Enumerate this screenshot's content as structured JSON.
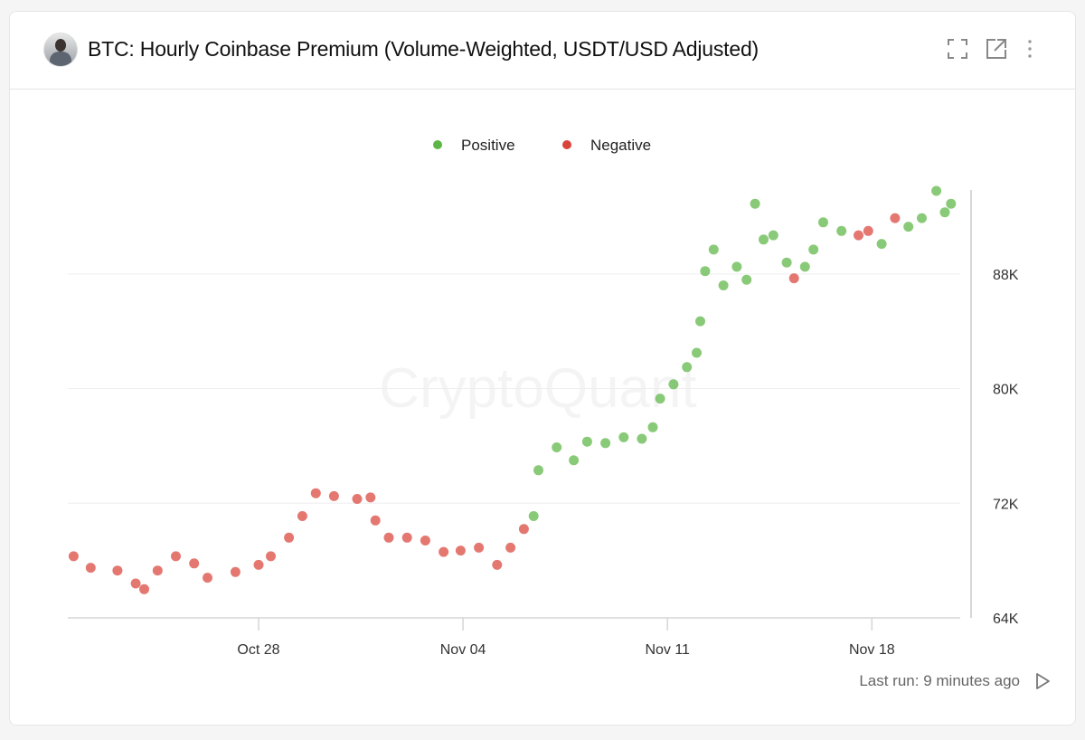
{
  "header": {
    "title": "BTC: Hourly Coinbase Premium (Volume-Weighted, USDT/USD Adjusted)",
    "icons": [
      "fullscreen-icon",
      "external-link-icon",
      "more-vertical-icon"
    ]
  },
  "footer": {
    "last_run": "Last run: 9 minutes ago",
    "icon": "play-icon"
  },
  "watermark": "CryptoQuant",
  "colors": {
    "positive": "#5cb544",
    "negative": "#d9443a"
  },
  "chart_data": {
    "type": "scatter",
    "title": "",
    "xlabel": "",
    "ylabel": "",
    "legend": {
      "placement": "top",
      "entries": [
        {
          "key": "positive",
          "label": "Positive"
        },
        {
          "key": "negative",
          "label": "Negative"
        }
      ]
    },
    "x_ticks": [
      "Oct 28",
      "Nov 04",
      "Nov 11",
      "Nov 18"
    ],
    "x_tick_dates": [
      "2024-10-28",
      "2024-11-04",
      "2024-11-11",
      "2024-11-18"
    ],
    "y_ticks": [
      "64K",
      "72K",
      "80K",
      "88K"
    ],
    "y_tick_values": [
      64000,
      72000,
      80000,
      88000
    ],
    "y_axis_position": "right",
    "grid": true,
    "ylim": [
      64000,
      94000
    ],
    "xlim": [
      "2024-10-21T12:00",
      "2024-11-21T00:00"
    ],
    "points": [
      [
        "2024-10-21T16:00",
        68300,
        "negative"
      ],
      [
        "2024-10-22T06:00",
        67500,
        "negative"
      ],
      [
        "2024-10-23T04:00",
        67300,
        "negative"
      ],
      [
        "2024-10-23T19:00",
        66400,
        "negative"
      ],
      [
        "2024-10-24T02:00",
        66000,
        "negative"
      ],
      [
        "2024-10-24T13:00",
        67300,
        "negative"
      ],
      [
        "2024-10-25T04:00",
        68300,
        "negative"
      ],
      [
        "2024-10-25T19:00",
        67800,
        "negative"
      ],
      [
        "2024-10-26T06:00",
        66800,
        "negative"
      ],
      [
        "2024-10-27T05:00",
        67200,
        "negative"
      ],
      [
        "2024-10-28T00:00",
        67700,
        "negative"
      ],
      [
        "2024-10-28T10:00",
        68300,
        "negative"
      ],
      [
        "2024-10-29T01:00",
        69600,
        "negative"
      ],
      [
        "2024-10-29T12:00",
        71100,
        "negative"
      ],
      [
        "2024-10-29T23:00",
        72700,
        "negative"
      ],
      [
        "2024-10-30T14:00",
        72500,
        "negative"
      ],
      [
        "2024-10-31T09:00",
        72300,
        "negative"
      ],
      [
        "2024-10-31T20:00",
        72400,
        "negative"
      ],
      [
        "2024-11-01T00:00",
        70800,
        "negative"
      ],
      [
        "2024-11-01T11:00",
        69600,
        "negative"
      ],
      [
        "2024-11-02T02:00",
        69600,
        "negative"
      ],
      [
        "2024-11-02T17:00",
        69400,
        "negative"
      ],
      [
        "2024-11-03T08:00",
        68600,
        "negative"
      ],
      [
        "2024-11-03T22:00",
        68700,
        "negative"
      ],
      [
        "2024-11-04T13:00",
        68900,
        "negative"
      ],
      [
        "2024-11-05T04:00",
        67700,
        "negative"
      ],
      [
        "2024-11-05T15:00",
        68900,
        "negative"
      ],
      [
        "2024-11-06T02:00",
        70200,
        "negative"
      ],
      [
        "2024-11-06T10:00",
        71100,
        "positive"
      ],
      [
        "2024-11-06T14:00",
        74300,
        "positive"
      ],
      [
        "2024-11-07T05:00",
        75900,
        "positive"
      ],
      [
        "2024-11-07T19:00",
        75000,
        "positive"
      ],
      [
        "2024-11-08T06:00",
        76300,
        "positive"
      ],
      [
        "2024-11-08T21:00",
        76200,
        "positive"
      ],
      [
        "2024-11-09T12:00",
        76600,
        "positive"
      ],
      [
        "2024-11-10T03:00",
        76500,
        "positive"
      ],
      [
        "2024-11-10T12:00",
        77300,
        "positive"
      ],
      [
        "2024-11-10T18:00",
        79300,
        "positive"
      ],
      [
        "2024-11-11T05:00",
        80300,
        "positive"
      ],
      [
        "2024-11-11T16:00",
        81500,
        "positive"
      ],
      [
        "2024-11-12T00:00",
        82500,
        "positive"
      ],
      [
        "2024-11-12T03:00",
        84700,
        "positive"
      ],
      [
        "2024-11-12T07:00",
        88200,
        "positive"
      ],
      [
        "2024-11-12T14:00",
        89700,
        "positive"
      ],
      [
        "2024-11-12T22:00",
        87200,
        "positive"
      ],
      [
        "2024-11-13T09:00",
        88500,
        "positive"
      ],
      [
        "2024-11-13T17:00",
        87600,
        "positive"
      ],
      [
        "2024-11-14T00:00",
        92900,
        "positive"
      ],
      [
        "2024-11-14T07:00",
        90400,
        "positive"
      ],
      [
        "2024-11-14T15:00",
        90700,
        "positive"
      ],
      [
        "2024-11-15T02:00",
        88800,
        "positive"
      ],
      [
        "2024-11-15T08:00",
        87700,
        "negative"
      ],
      [
        "2024-11-15T17:00",
        88500,
        "positive"
      ],
      [
        "2024-11-16T00:00",
        89700,
        "positive"
      ],
      [
        "2024-11-16T08:00",
        91600,
        "positive"
      ],
      [
        "2024-11-16T23:00",
        91000,
        "positive"
      ],
      [
        "2024-11-17T13:00",
        90700,
        "negative"
      ],
      [
        "2024-11-17T21:00",
        91000,
        "negative"
      ],
      [
        "2024-11-18T08:00",
        90100,
        "positive"
      ],
      [
        "2024-11-18T19:00",
        91900,
        "negative"
      ],
      [
        "2024-11-19T06:00",
        91300,
        "positive"
      ],
      [
        "2024-11-19T17:00",
        91900,
        "positive"
      ],
      [
        "2024-11-20T05:00",
        93800,
        "positive"
      ],
      [
        "2024-11-20T12:00",
        92300,
        "positive"
      ],
      [
        "2024-11-20T17:00",
        92900,
        "positive"
      ]
    ]
  }
}
